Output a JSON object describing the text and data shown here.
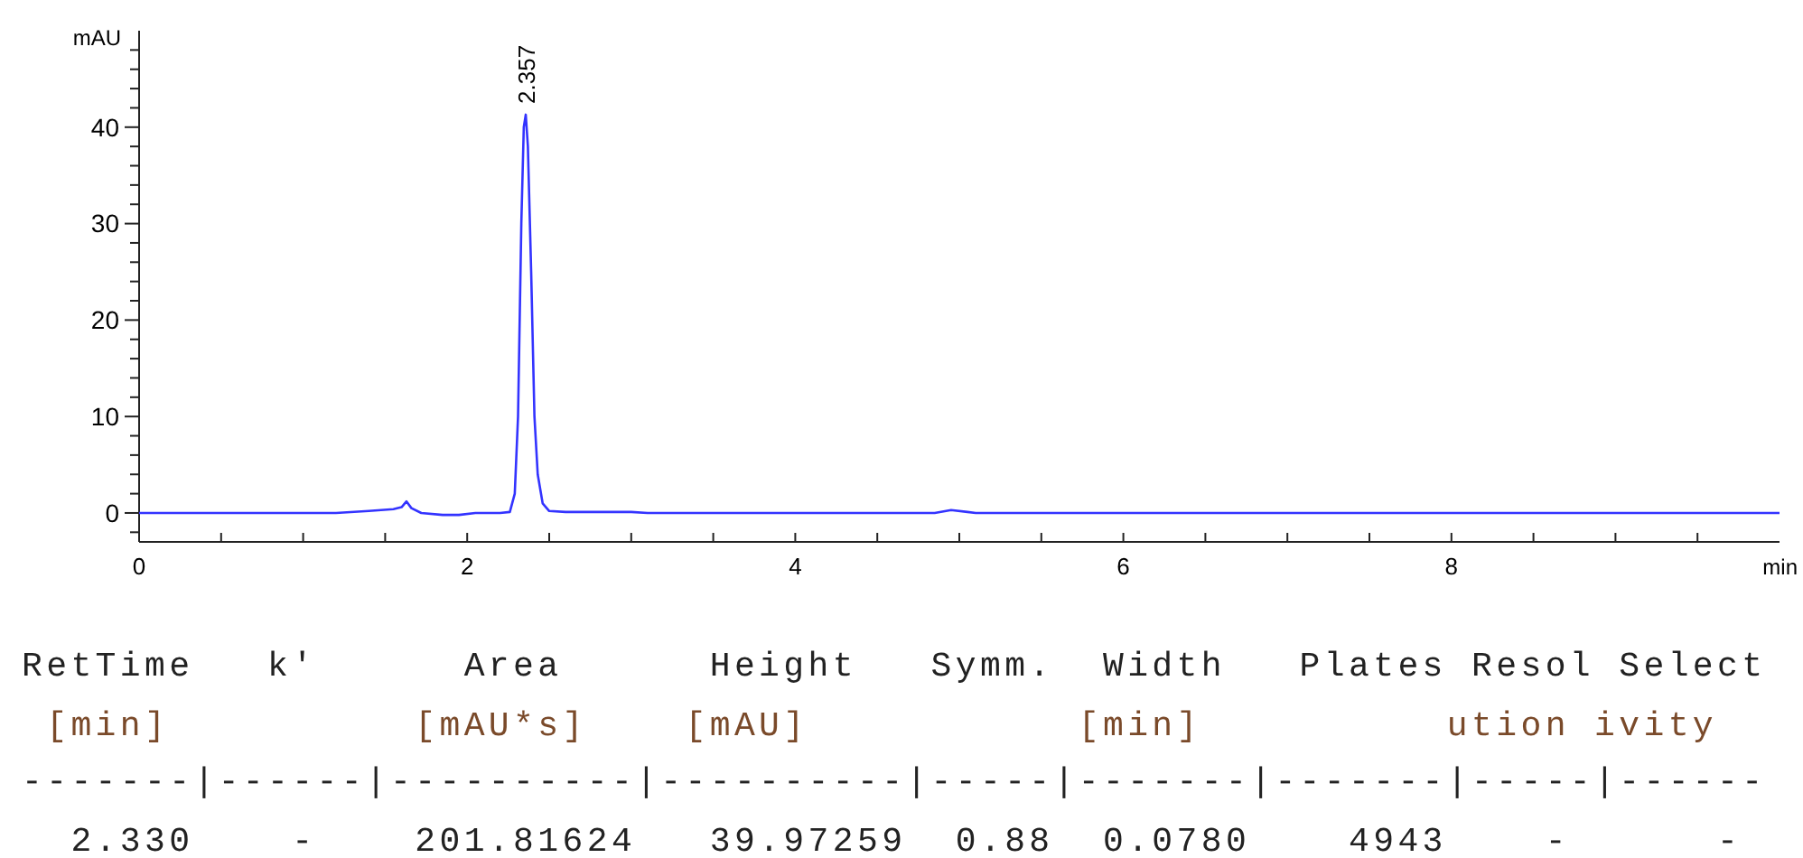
{
  "chart_data": {
    "type": "line",
    "xlabel": "min",
    "ylabel": "mAU",
    "xlim": [
      0,
      10
    ],
    "ylim": [
      -3,
      50
    ],
    "xticks": [
      0,
      {
        "value": 0.5,
        "label": null
      },
      {
        "value": 1,
        "label": null
      },
      {
        "value": 1.5,
        "label": null
      },
      2,
      {
        "value": 2.5,
        "label": null
      },
      {
        "value": 3,
        "label": null
      },
      {
        "value": 3.5,
        "label": null
      },
      4,
      {
        "value": 4.5,
        "label": null
      },
      {
        "value": 5,
        "label": null
      },
      {
        "value": 5.5,
        "label": null
      },
      6,
      {
        "value": 6.5,
        "label": null
      },
      {
        "value": 7,
        "label": null
      },
      {
        "value": 7.5,
        "label": null
      },
      8,
      {
        "value": 8.5,
        "label": null
      },
      {
        "value": 9,
        "label": null
      },
      {
        "value": 9.5,
        "label": null
      }
    ],
    "yticks": [
      {
        "value": -2,
        "label": null
      },
      0,
      {
        "value": 2,
        "label": null
      },
      {
        "value": 4,
        "label": null
      },
      {
        "value": 6,
        "label": null
      },
      {
        "value": 8,
        "label": null
      },
      10,
      {
        "value": 12,
        "label": null
      },
      {
        "value": 14,
        "label": null
      },
      {
        "value": 16,
        "label": null
      },
      {
        "value": 18,
        "label": null
      },
      20,
      {
        "value": 22,
        "label": null
      },
      {
        "value": 24,
        "label": null
      },
      {
        "value": 26,
        "label": null
      },
      {
        "value": 28,
        "label": null
      },
      30,
      {
        "value": 32,
        "label": null
      },
      {
        "value": 34,
        "label": null
      },
      {
        "value": 36,
        "label": null
      },
      {
        "value": 38,
        "label": null
      },
      40,
      {
        "value": 42,
        "label": null
      },
      {
        "value": 44,
        "label": null
      },
      {
        "value": 46,
        "label": null
      },
      {
        "value": 48,
        "label": null
      }
    ],
    "grid": false,
    "marker": "none",
    "line_style": "solid",
    "series": [
      {
        "color": "#3333ff",
        "x": [
          0,
          1.2,
          1.4,
          1.55,
          1.6,
          1.63,
          1.66,
          1.72,
          1.85,
          1.95,
          2.05,
          2.2,
          2.26,
          2.29,
          2.31,
          2.33,
          2.345,
          2.357,
          2.37,
          2.39,
          2.41,
          2.43,
          2.46,
          2.5,
          2.6,
          3.0,
          3.1,
          4.85,
          4.95,
          5.05,
          5.1,
          10
        ],
        "values": [
          0,
          0,
          0.2,
          0.4,
          0.6,
          1.2,
          0.5,
          0,
          -0.2,
          -0.2,
          0,
          0,
          0.1,
          2,
          10,
          30,
          40,
          41.3,
          38,
          25,
          10,
          4,
          1,
          0.2,
          0.1,
          0.1,
          0,
          0,
          0.3,
          0.1,
          0,
          0
        ]
      }
    ],
    "annotations": [
      {
        "text": "2.357",
        "x": 2.357,
        "y": 41.3
      },
      "RetTime   k'      Area      Height   Symm.  Width   Plates Resol Select",
      " [min]          [mAU*s]    [mAU]           [min]          ution ivity",
      "-------|------|----------|----------|-----|-------|-------|-----|------",
      "  2.330    -    201.81624   39.97259  0.88  0.0780    4943    -      -"
    ]
  }
}
